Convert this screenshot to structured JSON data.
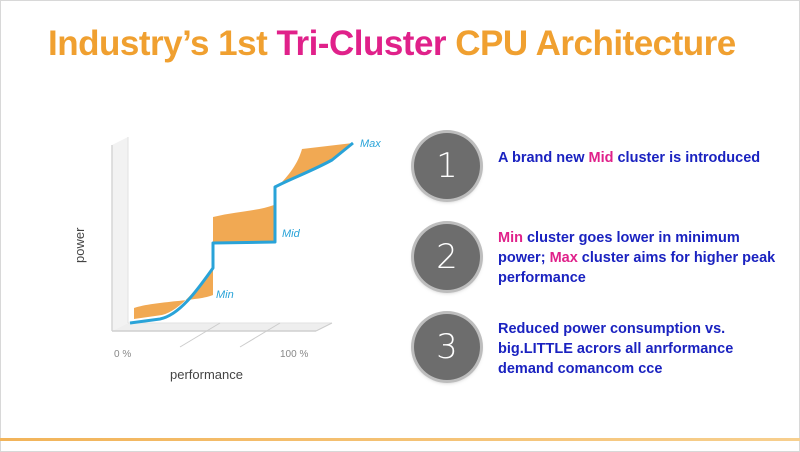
{
  "title": {
    "part1": "Industry’s 1st ",
    "accent": "Tri-Cluster",
    "part2": " CPU Architecture"
  },
  "colors": {
    "title_orange": "#f0a030",
    "accent_magenta": "#e0218a",
    "text_blue": "#1a22c0",
    "curve_blue": "#29a3d8",
    "band_orange": "#f0a040",
    "circle_gray": "#6d6d6d"
  },
  "diagram": {
    "y_axis_label": "power",
    "x_axis_label": "performance",
    "x_tick_start": "0 %",
    "x_tick_end": "100 %",
    "cluster_labels": {
      "min": "Min",
      "mid": "Mid",
      "max": "Max"
    }
  },
  "points": [
    {
      "number": "1",
      "parts": [
        {
          "t": "A brand new "
        },
        {
          "t": "Mid",
          "hl": true
        },
        {
          "t": " cluster is introduced"
        }
      ]
    },
    {
      "number": "2",
      "parts": [
        {
          "t": "Min",
          "hl": true
        },
        {
          "t": " cluster goes lower in minimum power; "
        },
        {
          "t": "Max",
          "hl": true
        },
        {
          "t": " cluster aims for higher peak performance"
        }
      ]
    },
    {
      "number": "3",
      "parts": [
        {
          "t": "Reduced power consumption vs. big.LITTLE acrors all anrformance demand comancom cce"
        }
      ]
    }
  ]
}
